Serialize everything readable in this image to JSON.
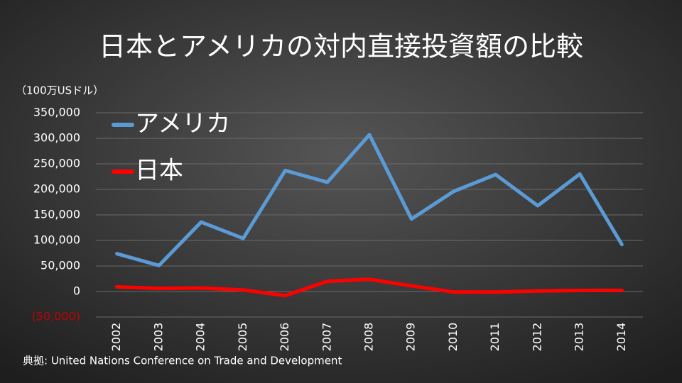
{
  "chart_data": {
    "type": "line",
    "title": "日本とアメリカの対内直接投資額の比較",
    "y_axis_label": "（100万USドル）",
    "source": "典拠: United Nations Conference on Trade and Development",
    "categories": [
      "2002",
      "2003",
      "2004",
      "2005",
      "2006",
      "2007",
      "2008",
      "2009",
      "2010",
      "2011",
      "2012",
      "2013",
      "2014"
    ],
    "series": [
      {
        "name": "アメリカ",
        "color": "#5b9bd5",
        "values": [
          74000,
          51000,
          136000,
          104000,
          237000,
          214000,
          307000,
          142000,
          196000,
          229000,
          168000,
          230000,
          92000
        ]
      },
      {
        "name": "日本",
        "color": "#ff0000",
        "values": [
          9000,
          6000,
          7000,
          3000,
          -8000,
          20000,
          24000,
          11000,
          -1000,
          -1000,
          1000,
          2000,
          2000
        ]
      }
    ],
    "ylim": [
      -50000,
      350000
    ],
    "yticks": [
      {
        "value": -50000,
        "label": "(50,000)"
      },
      0,
      {
        "value": 50000,
        "label": "50,000"
      },
      {
        "value": 100000,
        "label": "100,000"
      },
      {
        "value": 150000,
        "label": "150,000"
      },
      {
        "value": 200000,
        "label": "200,000"
      },
      {
        "value": 250000,
        "label": "250,000"
      },
      {
        "value": 300000,
        "label": "300,000"
      },
      {
        "value": 350000,
        "label": "350,000"
      }
    ],
    "negative_tick_color": "#c00000",
    "grid": true,
    "legend": "upper left"
  }
}
